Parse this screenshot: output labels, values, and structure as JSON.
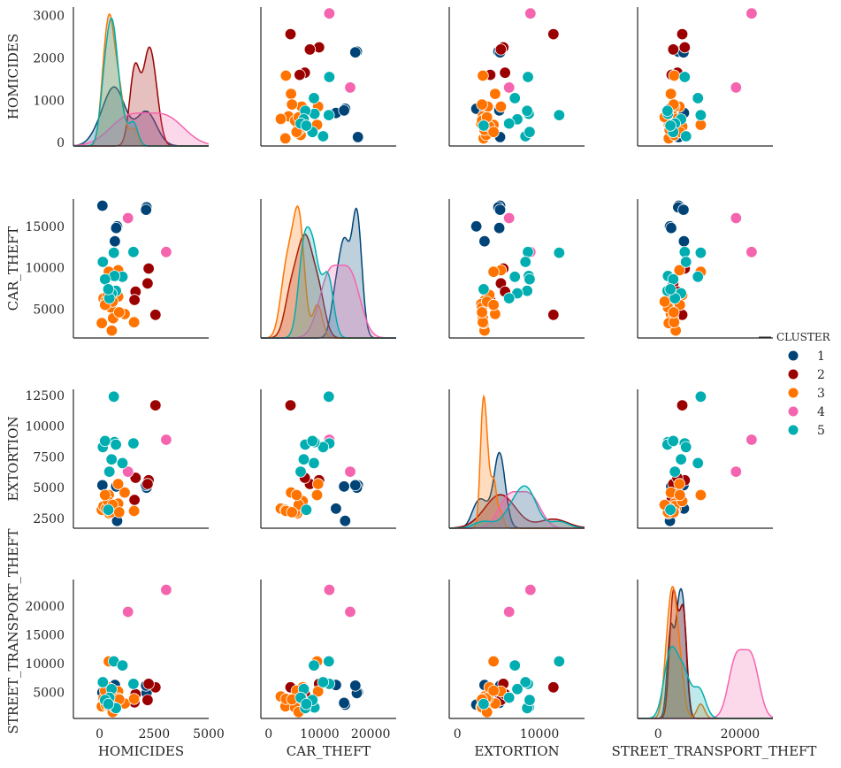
{
  "chart_data": {
    "type": "scatter",
    "kind": "pairplot",
    "diagonal": "kde",
    "variables": [
      "HOMICIDES",
      "CAR_THEFT",
      "EXTORTION",
      "STREET_TRANSPORT_THEFT"
    ],
    "hue": "CLUSTER",
    "legend": {
      "title": "CLUSTER",
      "placement": "center-right",
      "entries": [
        {
          "label": "1",
          "color": "#004477"
        },
        {
          "label": "2",
          "color": "#9B0000"
        },
        {
          "label": "3",
          "color": "#FF7400"
        },
        {
          "label": "4",
          "color": "#F564AE"
        },
        {
          "label": "5",
          "color": "#00ADB0"
        }
      ]
    },
    "axes": {
      "HOMICIDES": {
        "lim": [
          -1200,
          5000
        ],
        "ticks": [
          0,
          2500,
          5000
        ],
        "row_ticks": [
          0,
          1000,
          2000,
          3000
        ],
        "row_lim": [
          -80,
          3200
        ]
      },
      "CAR_THEFT": {
        "lim": [
          -1500,
          25000
        ],
        "ticks": [
          0,
          10000,
          20000
        ],
        "row_ticks": [
          5000,
          10000,
          15000
        ],
        "row_lim": [
          1500,
          18300
        ]
      },
      "EXTORTION": {
        "lim": [
          -1000,
          15500
        ],
        "ticks": [
          0,
          10000
        ],
        "row_ticks": [
          2500,
          5000,
          7500,
          10000,
          12500
        ],
        "row_lim": [
          1700,
          13000
        ]
      },
      "STREET_TRANSPORT_THEFT": {
        "lim": [
          -5000,
          28000
        ],
        "ticks": [
          0,
          20000
        ],
        "row_ticks": [
          5000,
          10000,
          15000,
          20000
        ],
        "row_lim": [
          500,
          24600
        ]
      }
    },
    "points": [
      {
        "cluster": 1,
        "HOMICIDES": 130,
        "CAR_THEFT": 17500,
        "EXTORTION": 5200,
        "STREET_TRANSPORT_THEFT": 5000
      },
      {
        "cluster": 1,
        "HOMICIDES": 2150,
        "CAR_THEFT": 17300,
        "EXTORTION": 5000,
        "STREET_TRANSPORT_THEFT": 4900
      },
      {
        "cluster": 1,
        "HOMICIDES": 800,
        "CAR_THEFT": 15000,
        "EXTORTION": 2300,
        "STREET_TRANSPORT_THEFT": 2900
      },
      {
        "cluster": 1,
        "HOMICIDES": 700,
        "CAR_THEFT": 13200,
        "EXTORTION": 3300,
        "STREET_TRANSPORT_THEFT": 6300
      },
      {
        "cluster": 1,
        "HOMICIDES": 2130,
        "CAR_THEFT": 17000,
        "EXTORTION": 5200,
        "STREET_TRANSPORT_THEFT": 6200
      },
      {
        "cluster": 1,
        "HOMICIDES": 760,
        "CAR_THEFT": 14800,
        "EXTORTION": 5100,
        "STREET_TRANSPORT_THEFT": 3200
      },
      {
        "cluster": 2,
        "HOMICIDES": 2560,
        "CAR_THEFT": 4300,
        "EXTORTION": 11700,
        "STREET_TRANSPORT_THEFT": 5900
      },
      {
        "cluster": 2,
        "HOMICIDES": 2250,
        "CAR_THEFT": 9900,
        "EXTORTION": 5600,
        "STREET_TRANSPORT_THEFT": 6500
      },
      {
        "cluster": 2,
        "HOMICIDES": 2200,
        "CAR_THEFT": 8100,
        "EXTORTION": 5300,
        "STREET_TRANSPORT_THEFT": 3700
      },
      {
        "cluster": 2,
        "HOMICIDES": 1650,
        "CAR_THEFT": 7100,
        "EXTORTION": 5800,
        "STREET_TRANSPORT_THEFT": 4700
      },
      {
        "cluster": 2,
        "HOMICIDES": 1600,
        "CAR_THEFT": 6100,
        "EXTORTION": 4000,
        "STREET_TRANSPORT_THEFT": 3300
      },
      {
        "cluster": 3,
        "HOMICIDES": 1150,
        "CAR_THEFT": 4400,
        "EXTORTION": 4600,
        "STREET_TRANSPORT_THEFT": 3100
      },
      {
        "cluster": 3,
        "HOMICIDES": 850,
        "CAR_THEFT": 9700,
        "EXTORTION": 5300,
        "STREET_TRANSPORT_THEFT": 5200
      },
      {
        "cluster": 3,
        "HOMICIDES": 850,
        "CAR_THEFT": 6500,
        "EXTORTION": 3700,
        "STREET_TRANSPORT_THEFT": 4000
      },
      {
        "cluster": 3,
        "HOMICIDES": 420,
        "CAR_THEFT": 9500,
        "EXTORTION": 4400,
        "STREET_TRANSPORT_THEFT": 10400
      },
      {
        "cluster": 3,
        "HOMICIDES": 620,
        "CAR_THEFT": 3900,
        "EXTORTION": 3100,
        "STREET_TRANSPORT_THEFT": 3700
      },
      {
        "cluster": 3,
        "HOMICIDES": 560,
        "CAR_THEFT": 2400,
        "EXTORTION": 3300,
        "STREET_TRANSPORT_THEFT": 4300
      },
      {
        "cluster": 3,
        "HOMICIDES": 100,
        "CAR_THEFT": 3300,
        "EXTORTION": 3200,
        "STREET_TRANSPORT_THEFT": 2600
      },
      {
        "cluster": 3,
        "HOMICIDES": 1580,
        "CAR_THEFT": 3400,
        "EXTORTION": 3100,
        "STREET_TRANSPORT_THEFT": 3900
      },
      {
        "cluster": 3,
        "HOMICIDES": 180,
        "CAR_THEFT": 6300,
        "EXTORTION": 3500,
        "STREET_TRANSPORT_THEFT": 4000
      },
      {
        "cluster": 3,
        "HOMICIDES": 300,
        "CAR_THEFT": 6000,
        "EXTORTION": 3300,
        "STREET_TRANSPORT_THEFT": 2800
      },
      {
        "cluster": 3,
        "HOMICIDES": 450,
        "CAR_THEFT": 5600,
        "EXTORTION": 2900,
        "STREET_TRANSPORT_THEFT": 2500
      },
      {
        "cluster": 3,
        "HOMICIDES": 520,
        "CAR_THEFT": 5200,
        "EXTORTION": 3000,
        "STREET_TRANSPORT_THEFT": 2400
      },
      {
        "cluster": 3,
        "HOMICIDES": 380,
        "CAR_THEFT": 6700,
        "EXTORTION": 3900,
        "STREET_TRANSPORT_THEFT": 5900
      },
      {
        "cluster": 3,
        "HOMICIDES": 600,
        "CAR_THEFT": 5900,
        "EXTORTION": 3600,
        "STREET_TRANSPORT_THEFT": 1600
      },
      {
        "cluster": 3,
        "HOMICIDES": 250,
        "CAR_THEFT": 5500,
        "EXTORTION": 4400,
        "STREET_TRANSPORT_THEFT": 5300
      },
      {
        "cluster": 3,
        "HOMICIDES": 900,
        "CAR_THEFT": 4600,
        "EXTORTION": 3000,
        "STREET_TRANSPORT_THEFT": 3800
      },
      {
        "cluster": 4,
        "HOMICIDES": 3050,
        "CAR_THEFT": 11900,
        "EXTORTION": 8900,
        "STREET_TRANSPORT_THEFT": 22800
      },
      {
        "cluster": 4,
        "HOMICIDES": 1300,
        "CAR_THEFT": 16000,
        "EXTORTION": 6300,
        "STREET_TRANSPORT_THEFT": 19000
      },
      {
        "cluster": 5,
        "HOMICIDES": 650,
        "CAR_THEFT": 11800,
        "EXTORTION": 12400,
        "STREET_TRANSPORT_THEFT": 10400
      },
      {
        "cluster": 5,
        "HOMICIDES": 1550,
        "CAR_THEFT": 11900,
        "EXTORTION": 8600,
        "STREET_TRANSPORT_THEFT": 6500
      },
      {
        "cluster": 5,
        "HOMICIDES": 150,
        "CAR_THEFT": 10700,
        "EXTORTION": 8300,
        "STREET_TRANSPORT_THEFT": 6800
      },
      {
        "cluster": 5,
        "HOMICIDES": 1050,
        "CAR_THEFT": 8900,
        "EXTORTION": 7000,
        "STREET_TRANSPORT_THEFT": 9700
      },
      {
        "cluster": 5,
        "HOMICIDES": 680,
        "CAR_THEFT": 9000,
        "EXTORTION": 8700,
        "STREET_TRANSPORT_THEFT": 2400
      },
      {
        "cluster": 5,
        "HOMICIDES": 750,
        "CAR_THEFT": 7200,
        "EXTORTION": 8500,
        "STREET_TRANSPORT_THEFT": 2300
      },
      {
        "cluster": 5,
        "HOMICIDES": 550,
        "CAR_THEFT": 6900,
        "EXTORTION": 7300,
        "STREET_TRANSPORT_THEFT": 5600
      },
      {
        "cluster": 5,
        "HOMICIDES": 450,
        "CAR_THEFT": 6300,
        "EXTORTION": 6300,
        "STREET_TRANSPORT_THEFT": 4100
      },
      {
        "cluster": 5,
        "HOMICIDES": 250,
        "CAR_THEFT": 8600,
        "EXTORTION": 8800,
        "STREET_TRANSPORT_THEFT": 3700
      },
      {
        "cluster": 5,
        "HOMICIDES": 400,
        "CAR_THEFT": 7400,
        "EXTORTION": 3200,
        "STREET_TRANSPORT_THEFT": 3000
      }
    ]
  }
}
